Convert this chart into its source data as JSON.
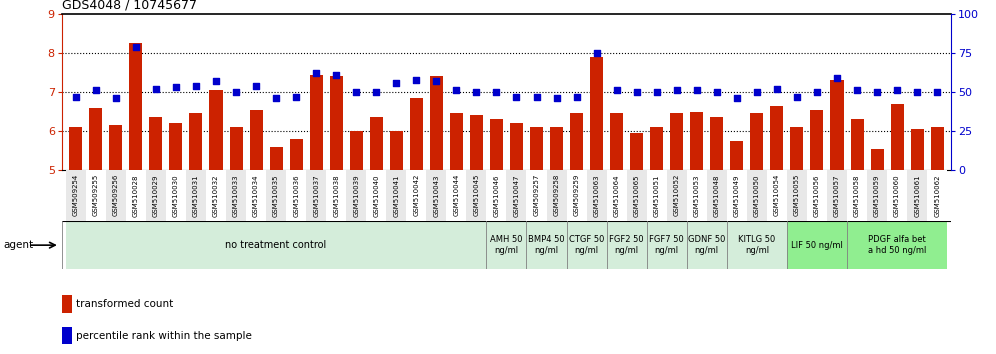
{
  "title": "GDS4048 / 10745677",
  "bar_color": "#CC2200",
  "dot_color": "#0000CC",
  "bar_bottom": 5.0,
  "ylim_left": [
    5,
    9
  ],
  "ylim_right": [
    0,
    100
  ],
  "yticks_left": [
    5,
    6,
    7,
    8,
    9
  ],
  "yticks_right": [
    0,
    25,
    50,
    75,
    100
  ],
  "grid_values": [
    6,
    7,
    8
  ],
  "categories": [
    "GSM509254",
    "GSM509255",
    "GSM509256",
    "GSM510028",
    "GSM510029",
    "GSM510030",
    "GSM510031",
    "GSM510032",
    "GSM510033",
    "GSM510034",
    "GSM510035",
    "GSM510036",
    "GSM510037",
    "GSM510038",
    "GSM510039",
    "GSM510040",
    "GSM510041",
    "GSM510042",
    "GSM510043",
    "GSM510044",
    "GSM510045",
    "GSM510046",
    "GSM510047",
    "GSM509257",
    "GSM509258",
    "GSM509259",
    "GSM510063",
    "GSM510064",
    "GSM510065",
    "GSM510051",
    "GSM510052",
    "GSM510053",
    "GSM510048",
    "GSM510049",
    "GSM510050",
    "GSM510054",
    "GSM510055",
    "GSM510056",
    "GSM510057",
    "GSM510058",
    "GSM510059",
    "GSM510060",
    "GSM510061",
    "GSM510062"
  ],
  "bar_values": [
    6.1,
    6.6,
    6.15,
    8.25,
    6.35,
    6.2,
    6.45,
    7.05,
    6.1,
    6.55,
    5.6,
    5.8,
    7.45,
    7.4,
    6.0,
    6.35,
    6.0,
    6.85,
    7.4,
    6.45,
    6.4,
    6.3,
    6.2,
    6.1,
    6.1,
    6.45,
    7.9,
    6.45,
    5.95,
    6.1,
    6.45,
    6.5,
    6.35,
    5.75,
    6.45,
    6.65,
    6.1,
    6.55,
    7.3,
    6.3,
    5.55,
    6.7,
    6.05,
    6.1
  ],
  "dot_values_pct": [
    47,
    51,
    46,
    79,
    52,
    53,
    54,
    57,
    50,
    54,
    46,
    47,
    62,
    61,
    50,
    50,
    56,
    58,
    57,
    51,
    50,
    50,
    47,
    47,
    46,
    47,
    75,
    51,
    50,
    50,
    51,
    51,
    50,
    46,
    50,
    52,
    47,
    50,
    59,
    51,
    50,
    51,
    50,
    50
  ],
  "agent_groups": [
    {
      "label": "no treatment control",
      "start": 0,
      "end": 21,
      "color": "#d4edda",
      "fontsize": 7
    },
    {
      "label": "AMH 50\nng/ml",
      "start": 21,
      "end": 23,
      "color": "#d4edda",
      "fontsize": 6
    },
    {
      "label": "BMP4 50\nng/ml",
      "start": 23,
      "end": 25,
      "color": "#d4edda",
      "fontsize": 6
    },
    {
      "label": "CTGF 50\nng/ml",
      "start": 25,
      "end": 27,
      "color": "#d4edda",
      "fontsize": 6
    },
    {
      "label": "FGF2 50\nng/ml",
      "start": 27,
      "end": 29,
      "color": "#d4edda",
      "fontsize": 6
    },
    {
      "label": "FGF7 50\nng/ml",
      "start": 29,
      "end": 31,
      "color": "#d4edda",
      "fontsize": 6
    },
    {
      "label": "GDNF 50\nng/ml",
      "start": 31,
      "end": 33,
      "color": "#d4edda",
      "fontsize": 6
    },
    {
      "label": "KITLG 50\nng/ml",
      "start": 33,
      "end": 36,
      "color": "#d4edda",
      "fontsize": 6
    },
    {
      "label": "LIF 50 ng/ml",
      "start": 36,
      "end": 39,
      "color": "#90EE90",
      "fontsize": 6
    },
    {
      "label": "PDGF alfa bet\na hd 50 ng/ml",
      "start": 39,
      "end": 44,
      "color": "#90EE90",
      "fontsize": 6
    }
  ],
  "legend_items": [
    {
      "color": "#CC2200",
      "label": "transformed count"
    },
    {
      "color": "#0000CC",
      "label": "percentile rank within the sample"
    }
  ],
  "xticklabel_bg_colors": [
    "#e8e8e8",
    "#ffffff",
    "#e8e8e8",
    "#ffffff",
    "#e8e8e8",
    "#ffffff",
    "#e8e8e8",
    "#ffffff",
    "#e8e8e8",
    "#ffffff",
    "#e8e8e8",
    "#ffffff",
    "#e8e8e8",
    "#ffffff",
    "#e8e8e8",
    "#ffffff",
    "#e8e8e8",
    "#ffffff",
    "#e8e8e8",
    "#ffffff",
    "#e8e8e8",
    "#ffffff",
    "#e8e8e8",
    "#ffffff",
    "#e8e8e8",
    "#ffffff",
    "#e8e8e8",
    "#ffffff",
    "#e8e8e8",
    "#ffffff",
    "#e8e8e8",
    "#ffffff",
    "#e8e8e8",
    "#ffffff",
    "#e8e8e8",
    "#ffffff",
    "#e8e8e8",
    "#ffffff",
    "#e8e8e8",
    "#ffffff",
    "#e8e8e8",
    "#ffffff",
    "#e8e8e8",
    "#ffffff"
  ]
}
